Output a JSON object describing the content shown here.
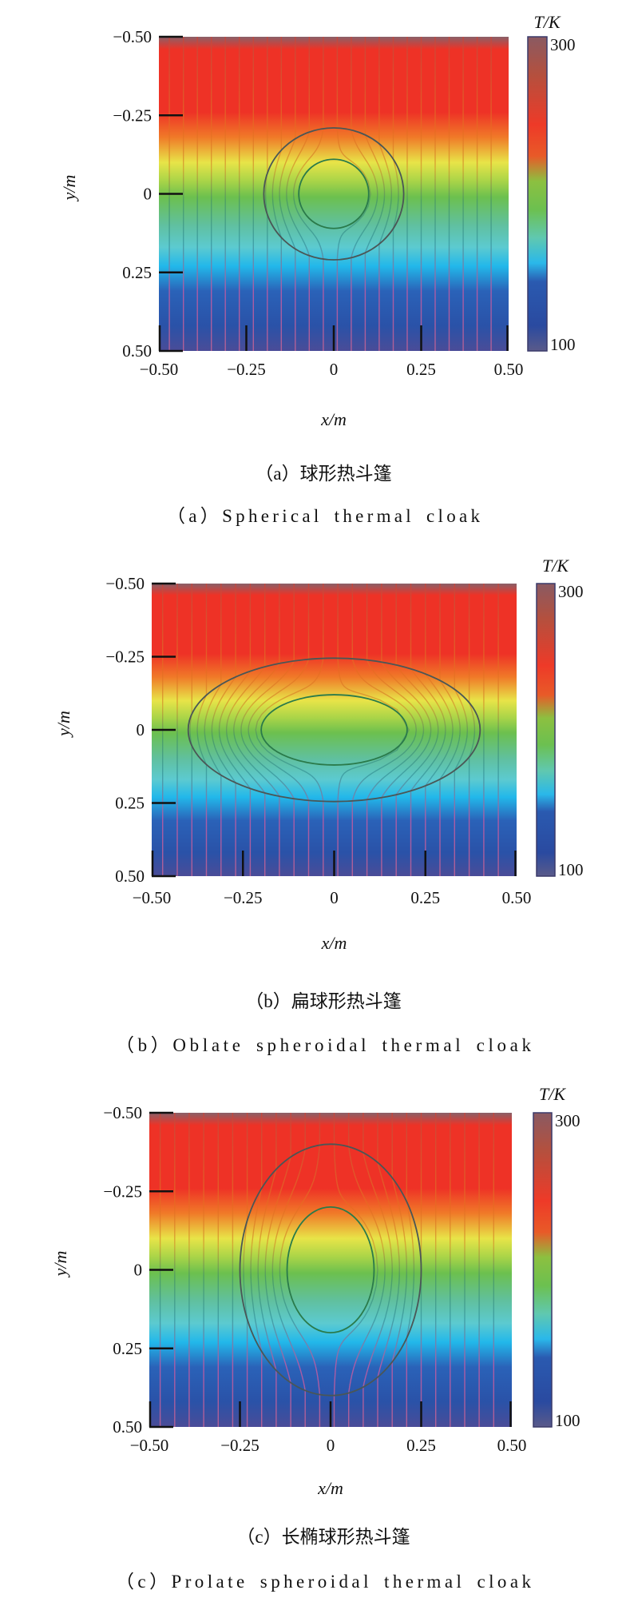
{
  "colormap": {
    "heat": [
      "#8a6068",
      "#ee3226",
      "#ee3226",
      "#f07a28",
      "#e8e448",
      "#a8d448",
      "#6cc04e",
      "#60c0a0",
      "#5ccad0",
      "#22b8ea",
      "#2a62b8",
      "#2a52a8",
      "#4a4c98"
    ],
    "colorbar": [
      "#8a5a62",
      "#b4503e",
      "#ee3a28",
      "#e85a28",
      "#8cc040",
      "#6cc050",
      "#60c8b0",
      "#2ab8ea",
      "#2a5ab0",
      "#2a4aa0",
      "#5a5a8a"
    ],
    "streamline": [
      "#c8453a",
      "#e86a22",
      "#d4a030",
      "#4a9a62",
      "#3a9aa2",
      "#c05aa4",
      "#c26496"
    ],
    "outer_boundary": "#4a5656",
    "inner_boundary": "#2a7a4a"
  },
  "chart_data": [
    {
      "type": "heatmap",
      "caption_zh": "（a）球形热斗篷",
      "caption_en": "（a）Spherical thermal cloak",
      "xlabel": "x/m",
      "ylabel": "y/m",
      "xlim": [
        -0.5,
        0.5
      ],
      "ylim": [
        -0.5,
        0.5
      ],
      "xticks": [
        "−0.50",
        "−0.25",
        "0",
        "0.25",
        "0.50"
      ],
      "yticks": [
        "−0.50",
        "−0.25",
        "0",
        "0.25",
        "0.50"
      ],
      "colorbar": {
        "label": "T/K",
        "min": 100,
        "max": 300,
        "min_label": "100",
        "max_label": "300"
      },
      "temperature_gradient": "300 K at y=-0.5 decreasing to 100 K at y=0.5",
      "cloak": {
        "shape": "circle",
        "outer_semi_axes_m": [
          0.2,
          0.21
        ],
        "inner_semi_axes_m": [
          0.1,
          0.11
        ]
      }
    },
    {
      "type": "heatmap",
      "caption_zh": "（b）扁球形热斗篷",
      "caption_en": "（b）Oblate spheroidal thermal cloak",
      "xlabel": "x/m",
      "ylabel": "y/m",
      "xlim": [
        -0.5,
        0.5
      ],
      "ylim": [
        -0.5,
        0.5
      ],
      "xticks": [
        "−0.50",
        "−0.25",
        "0",
        "0.25",
        "0.50"
      ],
      "yticks": [
        "−0.50",
        "−0.25",
        "0",
        "0.25",
        "0.50"
      ],
      "colorbar": {
        "label": "T/K",
        "min": 100,
        "max": 300,
        "min_label": "100",
        "max_label": "300"
      },
      "temperature_gradient": "300 K at y=-0.5 decreasing to 100 K at y=0.5",
      "cloak": {
        "shape": "oblate",
        "outer_semi_axes_m": [
          0.4,
          0.245
        ],
        "inner_semi_axes_m": [
          0.2,
          0.12
        ]
      }
    },
    {
      "type": "heatmap",
      "caption_zh": "（c）长椭球形热斗篷",
      "caption_en": "（c）Prolate spheroidal thermal cloak",
      "xlabel": "x/m",
      "ylabel": "y/m",
      "xlim": [
        -0.5,
        0.5
      ],
      "ylim": [
        -0.5,
        0.5
      ],
      "xticks": [
        "−0.50",
        "−0.25",
        "0",
        "0.25",
        "0.50"
      ],
      "yticks": [
        "−0.50",
        "−0.25",
        "0",
        "0.25",
        "0.50"
      ],
      "colorbar": {
        "label": "T/K",
        "min": 100,
        "max": 300,
        "min_label": "100",
        "max_label": "300"
      },
      "temperature_gradient": "300 K at y=-0.5 decreasing to 100 K at y=0.5",
      "cloak": {
        "shape": "prolate",
        "outer_semi_axes_m": [
          0.25,
          0.4
        ],
        "inner_semi_axes_m": [
          0.12,
          0.2
        ]
      }
    }
  ]
}
